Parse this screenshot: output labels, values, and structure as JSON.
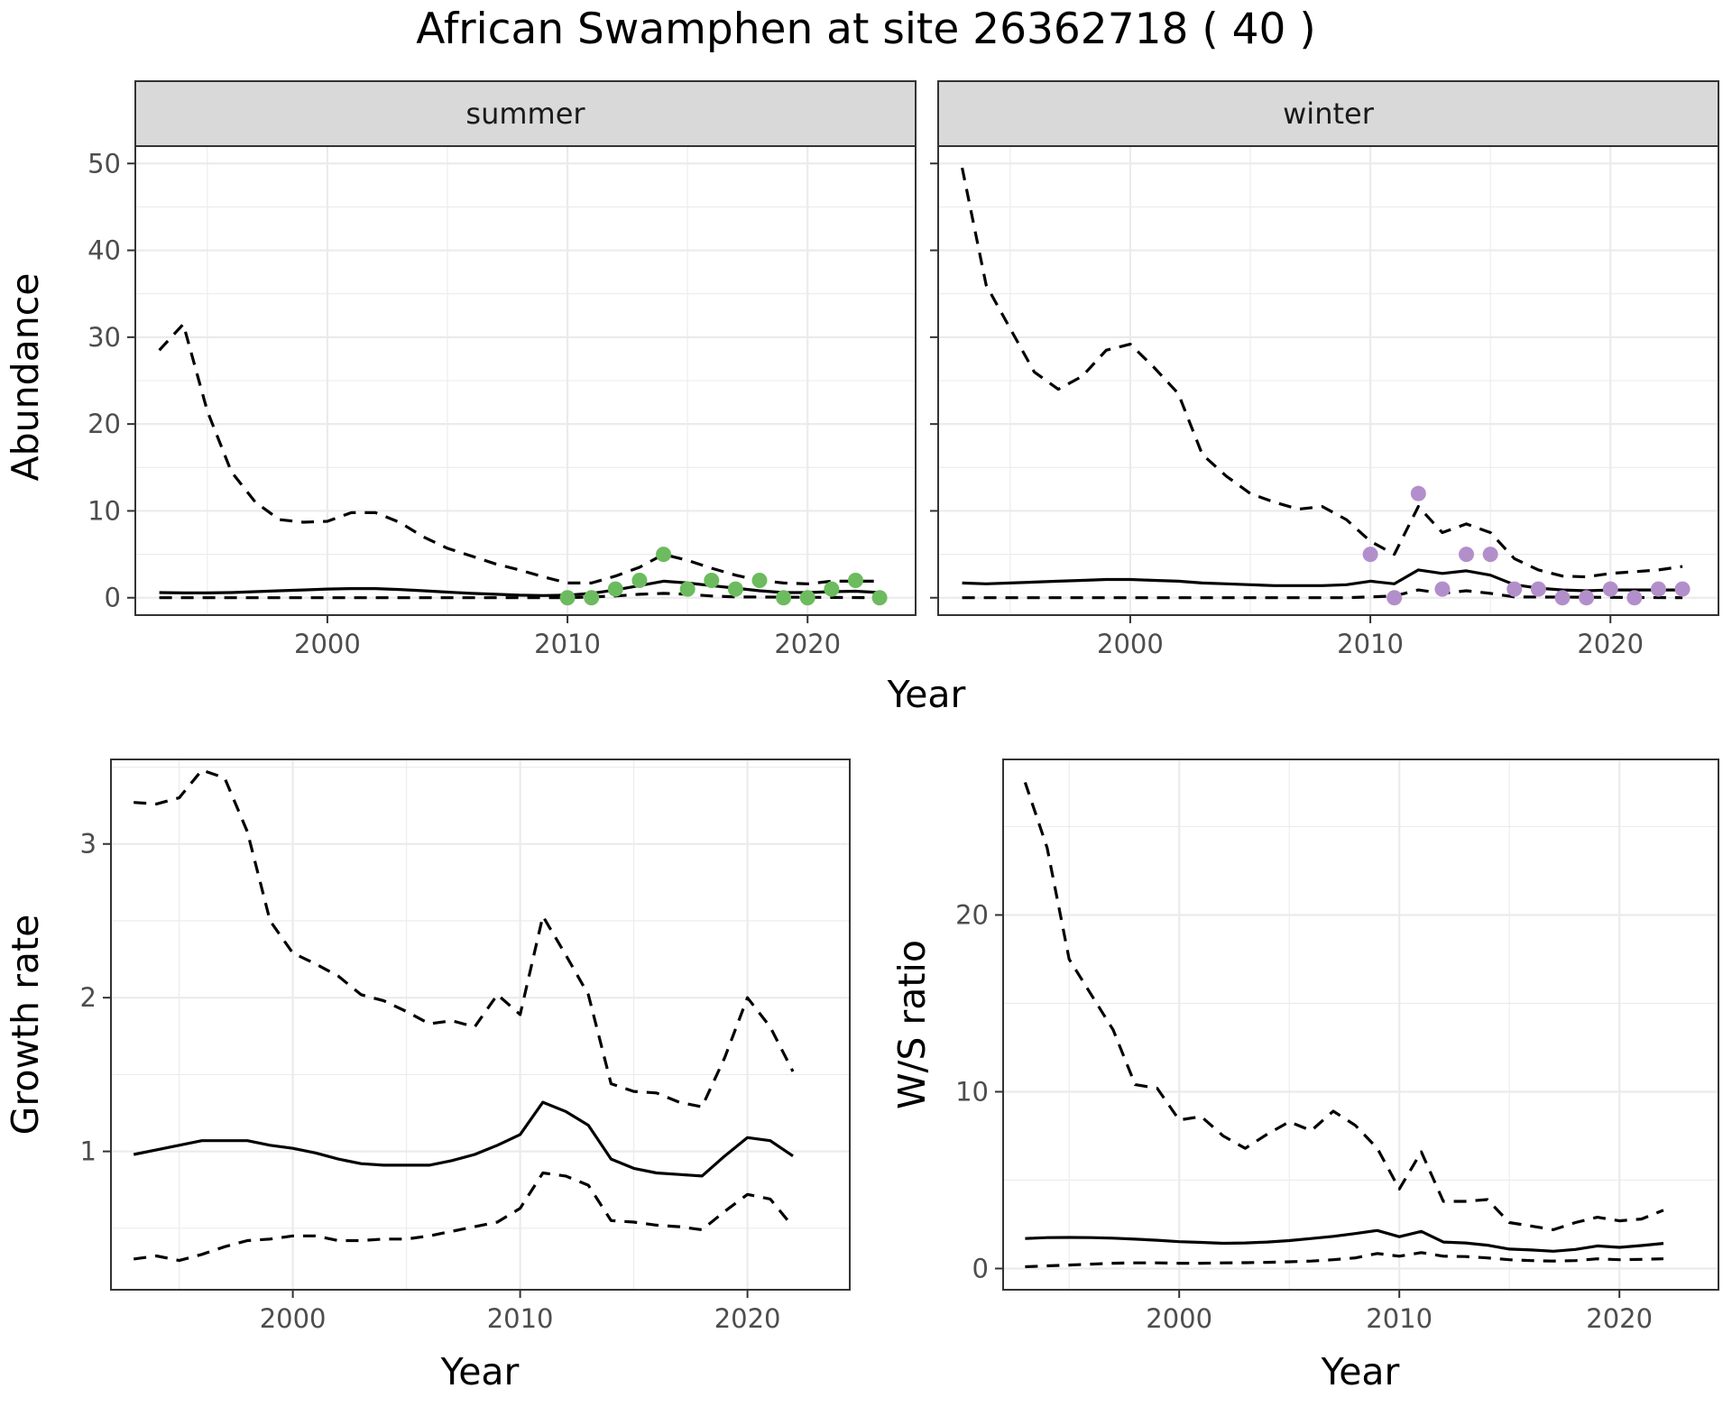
{
  "title": "African Swamphen at site 26362718 ( 40 )",
  "chart_data": [
    {
      "type": "line",
      "facet_title": "summer",
      "xlabel": "Year",
      "ylabel": "Abundance",
      "xlim": [
        1992,
        2024.5
      ],
      "ylim": [
        -2,
        52
      ],
      "x_ticks": [
        2000,
        2010,
        2020
      ],
      "y_ticks": [
        0,
        10,
        20,
        30,
        40,
        50
      ],
      "grid": true,
      "point_color": "#6cbb5e",
      "series": [
        {
          "role": "upper",
          "x": [
            1993,
            1994,
            1995,
            1996,
            1997,
            1998,
            1999,
            2000,
            2001,
            2002,
            2003,
            2004,
            2005,
            2006,
            2007,
            2008,
            2009,
            2010,
            2011,
            2012,
            2013,
            2014,
            2015,
            2016,
            2017,
            2018,
            2019,
            2020,
            2021,
            2022,
            2023
          ],
          "y": [
            28.5,
            31.5,
            21.5,
            14.5,
            11,
            9,
            8.7,
            8.8,
            9.8,
            9.8,
            8.7,
            7,
            5.7,
            4.8,
            3.9,
            3.2,
            2.4,
            1.7,
            1.7,
            2.5,
            3.5,
            5,
            4.3,
            3.4,
            2.6,
            2,
            1.7,
            1.6,
            1.9,
            1.9,
            1.9
          ]
        },
        {
          "role": "mean",
          "x": [
            1993,
            1994,
            1995,
            1996,
            1997,
            1998,
            1999,
            2000,
            2001,
            2002,
            2003,
            2004,
            2005,
            2006,
            2007,
            2008,
            2009,
            2010,
            2011,
            2012,
            2013,
            2014,
            2015,
            2016,
            2017,
            2018,
            2019,
            2020,
            2021,
            2022,
            2023
          ],
          "y": [
            0.6,
            0.55,
            0.55,
            0.6,
            0.7,
            0.8,
            0.9,
            1,
            1.05,
            1.05,
            0.95,
            0.8,
            0.65,
            0.5,
            0.4,
            0.3,
            0.25,
            0.3,
            0.5,
            0.9,
            1.4,
            1.9,
            1.7,
            1.4,
            1.1,
            0.8,
            0.6,
            0.6,
            0.7,
            0.75,
            0.6
          ]
        },
        {
          "role": "lower",
          "x": [
            1993,
            2010,
            2011,
            2012,
            2013,
            2014,
            2015,
            2016,
            2017,
            2023
          ],
          "y": [
            0,
            0,
            0.1,
            0.2,
            0.4,
            0.5,
            0.4,
            0.2,
            0.1,
            0
          ]
        },
        {
          "role": "observed",
          "x": [
            2010,
            2011,
            2012,
            2013,
            2014,
            2015,
            2016,
            2017,
            2018,
            2019,
            2020,
            2021,
            2022,
            2023
          ],
          "y": [
            0,
            0,
            1,
            2,
            5,
            1,
            2,
            1,
            2,
            0,
            0,
            1,
            2,
            0
          ]
        }
      ]
    },
    {
      "type": "line",
      "facet_title": "winter",
      "xlabel": "Year",
      "ylabel": "Abundance",
      "xlim": [
        1992,
        2024.5
      ],
      "ylim": [
        -2,
        52
      ],
      "x_ticks": [
        2000,
        2010,
        2020
      ],
      "y_ticks": [
        0,
        10,
        20,
        30,
        40,
        50
      ],
      "grid": true,
      "point_color": "#b28fca",
      "series": [
        {
          "role": "upper",
          "x": [
            1993,
            1994,
            1995,
            1996,
            1997,
            1998,
            1999,
            2000,
            2001,
            2002,
            2003,
            2004,
            2005,
            2006,
            2007,
            2008,
            2009,
            2010,
            2011,
            2012,
            2013,
            2014,
            2015,
            2016,
            2017,
            2018,
            2019,
            2020,
            2021,
            2022,
            2023
          ],
          "y": [
            49.5,
            36,
            31,
            26,
            24,
            25.5,
            28.5,
            29.2,
            26.5,
            23.5,
            16.5,
            14,
            12,
            11,
            10.2,
            10.5,
            9,
            6.5,
            5,
            10.5,
            7.5,
            8.5,
            7.5,
            4.5,
            3.2,
            2.5,
            2.4,
            2.8,
            3,
            3.2,
            3.6
          ]
        },
        {
          "role": "mean",
          "x": [
            1993,
            1994,
            1995,
            1996,
            1997,
            1998,
            1999,
            2000,
            2001,
            2002,
            2003,
            2004,
            2005,
            2006,
            2007,
            2008,
            2009,
            2010,
            2011,
            2012,
            2013,
            2014,
            2015,
            2016,
            2017,
            2018,
            2019,
            2020,
            2021,
            2022,
            2023
          ],
          "y": [
            1.7,
            1.6,
            1.7,
            1.8,
            1.9,
            2,
            2.1,
            2.1,
            2,
            1.9,
            1.7,
            1.6,
            1.5,
            1.4,
            1.4,
            1.4,
            1.5,
            1.9,
            1.6,
            3.2,
            2.8,
            3.1,
            2.6,
            1.5,
            1.1,
            0.9,
            0.8,
            0.9,
            0.9,
            0.9,
            0.9
          ]
        },
        {
          "role": "lower",
          "x": [
            1993,
            2009,
            2010,
            2011,
            2012,
            2013,
            2014,
            2015,
            2016,
            2023
          ],
          "y": [
            0,
            0,
            0.1,
            0.2,
            0.9,
            0.5,
            0.8,
            0.5,
            0.1,
            0
          ]
        },
        {
          "role": "observed",
          "x": [
            2010,
            2011,
            2012,
            2013,
            2014,
            2015,
            2016,
            2017,
            2018,
            2019,
            2020,
            2021,
            2022,
            2023
          ],
          "y": [
            5,
            0,
            12,
            1,
            5,
            5,
            1,
            1,
            0,
            0,
            1,
            0,
            1,
            1
          ]
        }
      ]
    },
    {
      "type": "line",
      "xlabel": "Year",
      "ylabel": "Growth rate",
      "xlim": [
        1992,
        2024.5
      ],
      "ylim": [
        0.1,
        3.55
      ],
      "x_ticks": [
        2000,
        2010,
        2020
      ],
      "y_ticks": [
        1,
        2,
        3
      ],
      "grid": true,
      "series": [
        {
          "role": "upper",
          "x": [
            1993,
            1994,
            1995,
            1996,
            1997,
            1998,
            1999,
            2000,
            2001,
            2002,
            2003,
            2004,
            2005,
            2006,
            2007,
            2008,
            2009,
            2010,
            2011,
            2012,
            2013,
            2014,
            2015,
            2016,
            2017,
            2018,
            2019,
            2020,
            2021,
            2022
          ],
          "y": [
            3.27,
            3.26,
            3.3,
            3.48,
            3.43,
            3.08,
            2.5,
            2.29,
            2.22,
            2.14,
            2.02,
            1.98,
            1.91,
            1.83,
            1.85,
            1.81,
            2.02,
            1.89,
            2.53,
            2.28,
            2.02,
            1.44,
            1.39,
            1.38,
            1.32,
            1.29,
            1.61,
            2.0,
            1.81,
            1.52
          ]
        },
        {
          "role": "mean",
          "x": [
            1993,
            1994,
            1995,
            1996,
            1997,
            1998,
            1999,
            2000,
            2001,
            2002,
            2003,
            2004,
            2005,
            2006,
            2007,
            2008,
            2009,
            2010,
            2011,
            2012,
            2013,
            2014,
            2015,
            2016,
            2017,
            2018,
            2019,
            2020,
            2021,
            2022
          ],
          "y": [
            0.98,
            1.01,
            1.04,
            1.07,
            1.07,
            1.07,
            1.04,
            1.02,
            0.99,
            0.95,
            0.92,
            0.91,
            0.91,
            0.91,
            0.94,
            0.98,
            1.04,
            1.11,
            1.32,
            1.26,
            1.17,
            0.95,
            0.89,
            0.86,
            0.85,
            0.84,
            0.97,
            1.09,
            1.07,
            0.97
          ]
        },
        {
          "role": "lower",
          "x": [
            1993,
            1994,
            1995,
            1996,
            1997,
            1998,
            1999,
            2000,
            2001,
            2002,
            2003,
            2004,
            2005,
            2006,
            2007,
            2008,
            2009,
            2010,
            2011,
            2012,
            2013,
            2014,
            2015,
            2016,
            2017,
            2018,
            2019,
            2020,
            2021,
            2022
          ],
          "y": [
            0.3,
            0.32,
            0.29,
            0.33,
            0.38,
            0.42,
            0.43,
            0.45,
            0.45,
            0.42,
            0.42,
            0.43,
            0.43,
            0.45,
            0.48,
            0.51,
            0.54,
            0.63,
            0.86,
            0.84,
            0.78,
            0.55,
            0.54,
            0.52,
            0.51,
            0.49,
            0.61,
            0.72,
            0.69,
            0.51
          ]
        }
      ]
    },
    {
      "type": "line",
      "xlabel": "Year",
      "ylabel": "W/S ratio",
      "xlim": [
        1992,
        2024.5
      ],
      "ylim": [
        -1.2,
        28.8
      ],
      "x_ticks": [
        2000,
        2010,
        2020
      ],
      "y_ticks": [
        0,
        10,
        20
      ],
      "grid": true,
      "series": [
        {
          "role": "upper",
          "x": [
            1993,
            1994,
            1995,
            1996,
            1997,
            1998,
            1999,
            2000,
            2001,
            2002,
            2003,
            2004,
            2005,
            2006,
            2007,
            2008,
            2009,
            2010,
            2011,
            2012,
            2013,
            2014,
            2015,
            2016,
            2017,
            2018,
            2019,
            2020,
            2021,
            2022
          ],
          "y": [
            27.5,
            23.8,
            17.5,
            15.5,
            13.5,
            10.4,
            10.2,
            8.4,
            8.6,
            7.5,
            6.8,
            7.6,
            8.3,
            7.8,
            8.9,
            8.1,
            6.8,
            4.5,
            6.6,
            3.8,
            3.8,
            3.9,
            2.6,
            2.4,
            2.2,
            2.6,
            2.9,
            2.7,
            2.8,
            3.3
          ]
        },
        {
          "role": "mean",
          "x": [
            1993,
            1994,
            1995,
            1996,
            1997,
            1998,
            1999,
            2000,
            2001,
            2002,
            2003,
            2004,
            2005,
            2006,
            2007,
            2008,
            2009,
            2010,
            2011,
            2012,
            2013,
            2014,
            2015,
            2016,
            2017,
            2018,
            2019,
            2020,
            2021,
            2022
          ],
          "y": [
            1.7,
            1.75,
            1.76,
            1.75,
            1.72,
            1.66,
            1.6,
            1.52,
            1.48,
            1.43,
            1.45,
            1.5,
            1.58,
            1.7,
            1.82,
            1.98,
            2.15,
            1.8,
            2.1,
            1.5,
            1.45,
            1.32,
            1.1,
            1.05,
            0.98,
            1.08,
            1.28,
            1.2,
            1.3,
            1.42
          ]
        },
        {
          "role": "lower",
          "x": [
            1993,
            1994,
            1995,
            1996,
            1997,
            1998,
            1999,
            2000,
            2001,
            2002,
            2003,
            2004,
            2005,
            2006,
            2007,
            2008,
            2009,
            2010,
            2011,
            2012,
            2013,
            2014,
            2015,
            2016,
            2017,
            2018,
            2019,
            2020,
            2021,
            2022
          ],
          "y": [
            0.1,
            0.15,
            0.2,
            0.25,
            0.3,
            0.32,
            0.32,
            0.3,
            0.3,
            0.32,
            0.33,
            0.35,
            0.38,
            0.42,
            0.5,
            0.6,
            0.85,
            0.7,
            0.9,
            0.7,
            0.68,
            0.6,
            0.5,
            0.45,
            0.42,
            0.45,
            0.55,
            0.5,
            0.52,
            0.55
          ]
        }
      ]
    }
  ]
}
